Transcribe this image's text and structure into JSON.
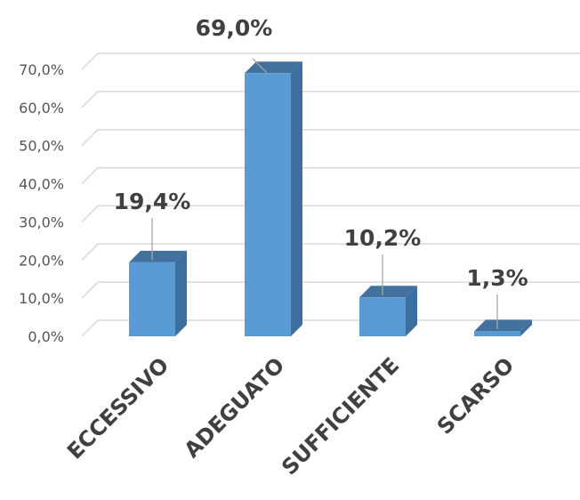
{
  "chart_data": {
    "type": "bar",
    "style": "3d-column",
    "categories": [
      "ECCESSIVO",
      "ADEGUATO",
      "SUFFICIENTE",
      "SCARSO"
    ],
    "values": [
      19.4,
      69.0,
      10.2,
      1.3
    ],
    "value_labels": [
      "19,4%",
      "69,0%",
      "10,2%",
      "1,3%"
    ],
    "y_ticks": [
      "0,0%",
      "10,0%",
      "20,0%",
      "30,0%",
      "40,0%",
      "50,0%",
      "60,0%",
      "70,0%"
    ],
    "ylim": [
      0,
      70
    ],
    "grid": true,
    "legend": "none",
    "colors": {
      "bar_front": "#5b9bd5",
      "bar_side": "#3d6f9e",
      "bar_top": "#41719c",
      "gridline": "#d9d9d9",
      "label_text": "#404040",
      "tick_text": "#555555"
    }
  }
}
